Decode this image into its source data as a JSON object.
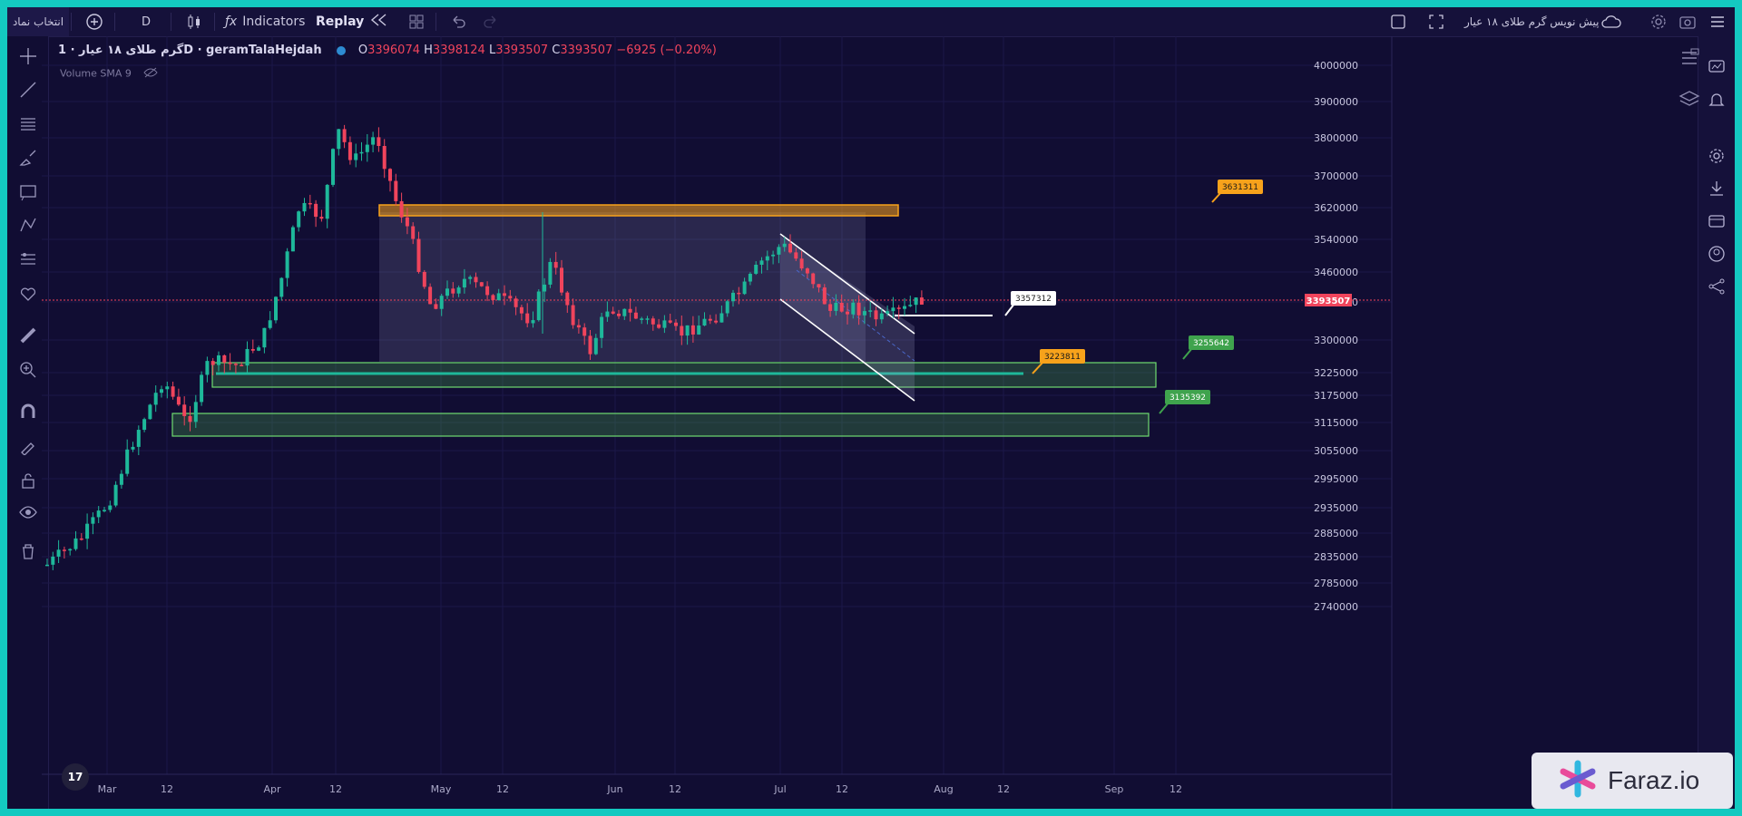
{
  "topbar": {
    "symbol_search": "انتخاب نماد",
    "interval": "D",
    "indicators": "Indicators",
    "replay": "Replay",
    "layout_name": "پیش نویس گرم طلای ۱۸ عیار"
  },
  "legend": {
    "symbol": "گرم طلای ۱۸ عیار · 1D · geramTalaHejdah",
    "open_label": "O",
    "open": "3396074",
    "high_label": "H",
    "high": "3398124",
    "low_label": "L",
    "low": "3393507",
    "close_label": "C",
    "close": "3393507",
    "change": "−6925 (−0.20%)",
    "volume": "Volume SMA 9"
  },
  "price_axis": [
    "4000000",
    "3900000",
    "3800000",
    "3700000",
    "3620000",
    "3540000",
    "3460000",
    "3380000",
    "3300000",
    "3225000",
    "3175000",
    "3115000",
    "3055000",
    "2995000",
    "2935000",
    "2885000",
    "2835000",
    "2785000",
    "2740000"
  ],
  "current_price": "3393507",
  "time_axis": [
    "Mar",
    "12",
    "Apr",
    "12",
    "May",
    "12",
    "Jun",
    "12",
    "Jul",
    "12",
    "Aug",
    "12",
    "Sep",
    "12"
  ],
  "annotations": {
    "label_3631311": "3631311",
    "label_3357312": "3357312",
    "label_3223811": "3223811",
    "label_3255642": "3255642",
    "label_3135392": "3135392"
  },
  "watermark": "Faraz.io",
  "colors": {
    "background": "#110d33",
    "up": "#1eb89a",
    "down": "#f0445c",
    "orange": "#f7a21b",
    "green_zone": "#4caf50"
  },
  "chart_data": {
    "type": "candlestick",
    "symbol": "geramTalaHejdah",
    "interval": "1D",
    "ohlc_last": {
      "open": 3396074,
      "high": 3398124,
      "low": 3393507,
      "close": 3393507
    },
    "current_price": 3393507,
    "price_range": [
      2740000,
      4000000
    ],
    "x_range": [
      "Mar",
      "Sep"
    ],
    "levels": [
      {
        "type": "resistance-zone",
        "color": "orange",
        "value_top": 3620000,
        "value_bottom": 3600000
      },
      {
        "type": "support-zone",
        "color": "green",
        "value_top": 3245000,
        "value_bottom": 3195000
      },
      {
        "type": "support-zone",
        "color": "green",
        "value_top": 3130000,
        "value_bottom": 3085000
      }
    ],
    "annotations": [
      3631311,
      3357312,
      3223811,
      3255642,
      3135392
    ]
  }
}
